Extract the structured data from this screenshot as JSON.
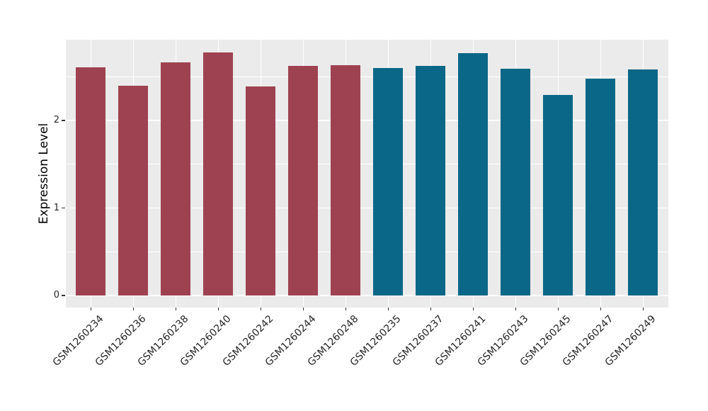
{
  "chart_data": {
    "type": "bar",
    "title": "",
    "xlabel": "",
    "ylabel": "Expression Level",
    "ylim": [
      -0.13,
      2.92
    ],
    "yticks": [
      0,
      1,
      2
    ],
    "minor_gridlines": [
      0.5,
      1.5,
      2.5
    ],
    "grid": "on",
    "legend": "none",
    "panel_background": "#EBEBEB",
    "gridline_color": "#FFFFFF",
    "axis_text_color": "#262626",
    "categories": [
      "GSM1260234",
      "GSM1260236",
      "GSM1260238",
      "GSM1260240",
      "GSM1260242",
      "GSM1260244",
      "GSM1260248",
      "GSM1260235",
      "GSM1260237",
      "GSM1260241",
      "GSM1260243",
      "GSM1260245",
      "GSM1260247",
      "GSM1260249"
    ],
    "series": [
      {
        "name": "Expression Level",
        "values": [
          2.61,
          2.4,
          2.66,
          2.78,
          2.39,
          2.62,
          2.63,
          2.6,
          2.62,
          2.77,
          2.59,
          2.29,
          2.48,
          2.58
        ]
      }
    ],
    "groups": [
      {
        "name": "group-red",
        "color": "#9E4251",
        "samples": [
          "GSM1260234",
          "GSM1260236",
          "GSM1260238",
          "GSM1260240",
          "GSM1260242",
          "GSM1260244",
          "GSM1260248"
        ]
      },
      {
        "name": "group-blue",
        "color": "#0B6787",
        "samples": [
          "GSM1260235",
          "GSM1260237",
          "GSM1260241",
          "GSM1260243",
          "GSM1260245",
          "GSM1260247",
          "GSM1260249"
        ]
      }
    ],
    "bar_group_index": [
      0,
      0,
      0,
      0,
      0,
      0,
      0,
      1,
      1,
      1,
      1,
      1,
      1,
      1
    ]
  }
}
